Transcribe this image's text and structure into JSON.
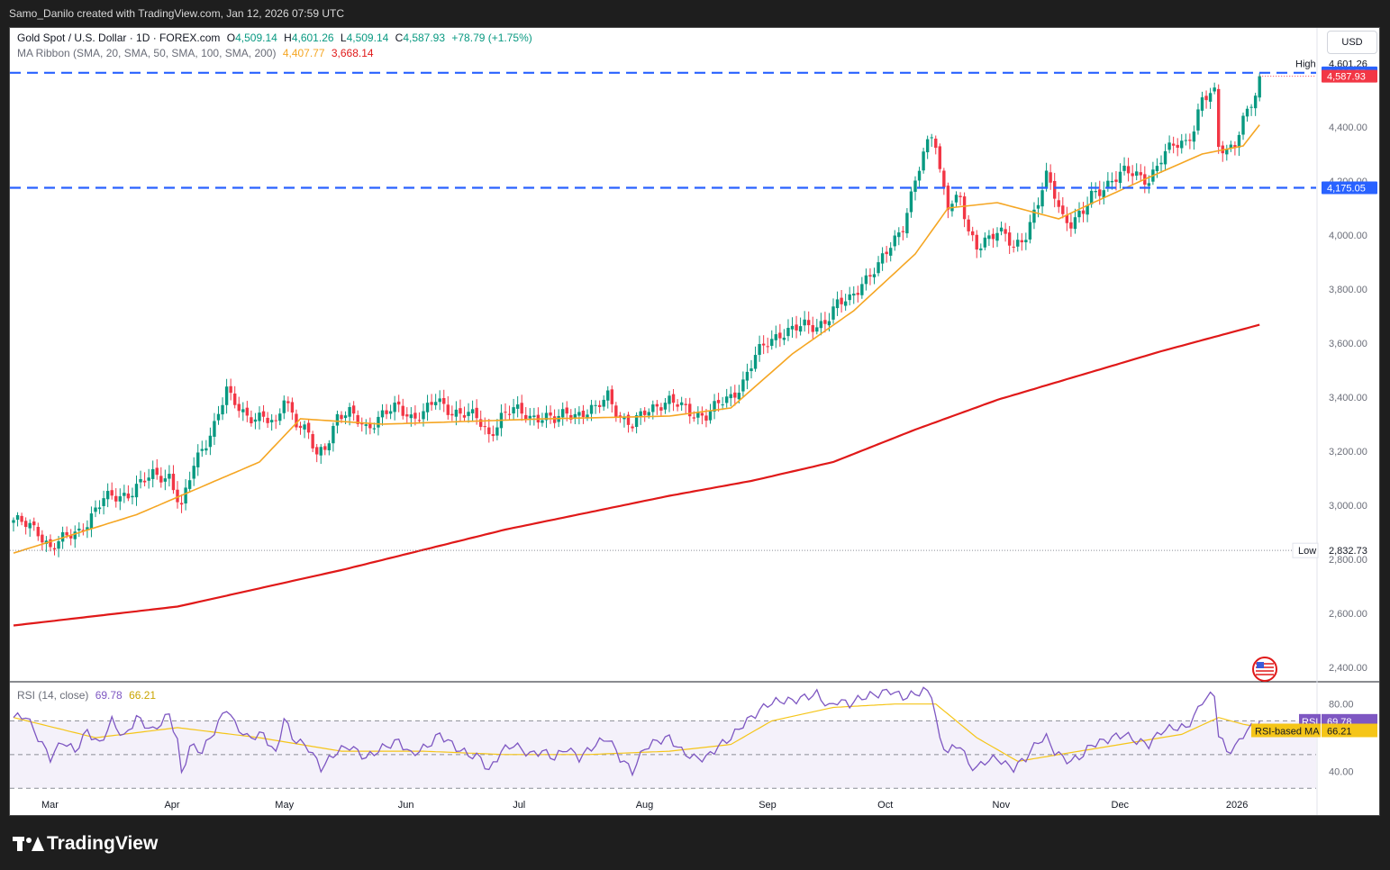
{
  "header": {
    "attribution": "Samo_Danilo created with TradingView.com, Jan 12, 2026 07:59 UTC"
  },
  "legend": {
    "symbol": "Gold Spot / U.S. Dollar · 1D · FOREX.com",
    "o_label": "O",
    "o_value": "4,509.14",
    "h_label": "H",
    "h_value": "4,601.26",
    "l_label": "L",
    "l_value": "4,509.14",
    "c_label": "C",
    "c_value": "4,587.93",
    "change": "+78.79 (+1.75%)",
    "ma_title": "MA Ribbon (SMA, 20, SMA, 50, SMA, 100, SMA, 200)",
    "ma20_value": "4,407.77",
    "ma200_value": "3,668.14",
    "rsi_title": "RSI (14, close)",
    "rsi_value": "69.78",
    "rsi_ma_value": "66.21"
  },
  "currency": "USD",
  "logo_text": "TradingView",
  "colors": {
    "up": "#089981",
    "down": "#f23645",
    "ma20": "#f5a623",
    "ma200": "#e01919",
    "level_line": "#2962ff",
    "rsi": "#7e57c2",
    "rsi_ma": "#f5c518",
    "price_tag": "#f23645"
  },
  "chart_data": [
    {
      "type": "candlestick",
      "title": "Gold Spot / U.S. Dollar · 1D · FOREX.com",
      "ylim": [
        2350,
        4700
      ],
      "y_ticks": [
        2400,
        2600,
        2800,
        3000,
        3200,
        3400,
        3600,
        3800,
        4000,
        4200,
        4400
      ],
      "y_tick_labels": [
        "2,400.00",
        "2,600.00",
        "2,800.00",
        "3,000.00",
        "3,200.00",
        "3,400.00",
        "3,600.00",
        "3,800.00",
        "4,000.00",
        "4,200.00",
        "4,400.00"
      ],
      "x_labels": [
        "Mar",
        "Apr",
        "May",
        "Jun",
        "Jul",
        "Aug",
        "Sep",
        "Oct",
        "Nov",
        "Dec",
        "2026"
      ],
      "x_label_index": [
        9,
        39,
        66,
        96,
        124,
        154,
        184,
        213,
        241,
        270,
        298
      ],
      "keypoints": [
        [
          0,
          2945
        ],
        [
          6,
          2905
        ],
        [
          9,
          2845
        ],
        [
          16,
          2905
        ],
        [
          22,
          3020
        ],
        [
          28,
          3045
        ],
        [
          34,
          3110
        ],
        [
          38,
          3110
        ],
        [
          41,
          2985
        ],
        [
          44,
          3150
        ],
        [
          49,
          3300
        ],
        [
          52,
          3420
        ],
        [
          53,
          3390
        ],
        [
          57,
          3335
        ],
        [
          61,
          3320
        ],
        [
          64,
          3290
        ],
        [
          66,
          3410
        ],
        [
          69,
          3310
        ],
        [
          72,
          3255
        ],
        [
          74,
          3180
        ],
        [
          76,
          3220
        ],
        [
          79,
          3330
        ],
        [
          82,
          3335
        ],
        [
          86,
          3290
        ],
        [
          90,
          3335
        ],
        [
          94,
          3360
        ],
        [
          97,
          3330
        ],
        [
          100,
          3340
        ],
        [
          103,
          3385
        ],
        [
          107,
          3350
        ],
        [
          110,
          3340
        ],
        [
          113,
          3320
        ],
        [
          116,
          3260
        ],
        [
          119,
          3330
        ],
        [
          122,
          3350
        ],
        [
          126,
          3330
        ],
        [
          129,
          3330
        ],
        [
          132,
          3310
        ],
        [
          135,
          3345
        ],
        [
          138,
          3340
        ],
        [
          142,
          3350
        ],
        [
          145,
          3410
        ],
        [
          148,
          3330
        ],
        [
          151,
          3290
        ],
        [
          154,
          3345
        ],
        [
          157,
          3375
        ],
        [
          160,
          3385
        ],
        [
          163,
          3360
        ],
        [
          166,
          3340
        ],
        [
          169,
          3335
        ],
        [
          172,
          3370
        ],
        [
          175,
          3400
        ],
        [
          178,
          3460
        ],
        [
          181,
          3550
        ],
        [
          184,
          3600
        ],
        [
          187,
          3640
        ],
        [
          190,
          3650
        ],
        [
          193,
          3660
        ],
        [
          196,
          3665
        ],
        [
          199,
          3700
        ],
        [
          201,
          3740
        ],
        [
          204,
          3760
        ],
        [
          207,
          3830
        ],
        [
          211,
          3880
        ],
        [
          214,
          3960
        ],
        [
          217,
          4040
        ],
        [
          220,
          4200
        ],
        [
          222,
          4290
        ],
        [
          224,
          4370
        ],
        [
          225,
          4340
        ],
        [
          226,
          4240
        ],
        [
          228,
          4120
        ],
        [
          231,
          4130
        ],
        [
          233,
          4000
        ],
        [
          235,
          3960
        ],
        [
          237,
          3990
        ],
        [
          240,
          4010
        ],
        [
          242,
          3990
        ],
        [
          244,
          3950
        ],
        [
          247,
          4010
        ],
        [
          250,
          4120
        ],
        [
          252,
          4210
        ],
        [
          254,
          4150
        ],
        [
          256,
          4070
        ],
        [
          258,
          4050
        ],
        [
          261,
          4080
        ],
        [
          263,
          4140
        ],
        [
          266,
          4180
        ],
        [
          268,
          4210
        ],
        [
          271,
          4230
        ],
        [
          274,
          4220
        ],
        [
          277,
          4210
        ],
        [
          280,
          4280
        ],
        [
          283,
          4330
        ],
        [
          286,
          4350
        ],
        [
          288,
          4400
        ],
        [
          290,
          4500
        ],
        [
          293,
          4520
        ],
        [
          294,
          4330
        ],
        [
          296,
          4320
        ],
        [
          298,
          4345
        ],
        [
          300,
          4420
        ],
        [
          302,
          4480
        ],
        [
          303,
          4510
        ],
        [
          304,
          4588
        ]
      ],
      "series": [
        {
          "name": "SMA 20",
          "points": [
            [
              0,
              2823
            ],
            [
              30,
              2965
            ],
            [
              60,
              3160
            ],
            [
              70,
              3320
            ],
            [
              90,
              3300
            ],
            [
              130,
              3320
            ],
            [
              160,
              3330
            ],
            [
              175,
              3360
            ],
            [
              190,
              3560
            ],
            [
              205,
              3720
            ],
            [
              220,
              3930
            ],
            [
              228,
              4100
            ],
            [
              240,
              4120
            ],
            [
              255,
              4060
            ],
            [
              262,
              4110
            ],
            [
              275,
              4200
            ],
            [
              290,
              4300
            ],
            [
              300,
              4330
            ],
            [
              304,
              4408
            ]
          ]
        },
        {
          "name": "SMA 200",
          "points": [
            [
              0,
              2555
            ],
            [
              40,
              2625
            ],
            [
              80,
              2760
            ],
            [
              120,
              2910
            ],
            [
              160,
              3035
            ],
            [
              180,
              3090
            ],
            [
              200,
              3160
            ],
            [
              220,
              3280
            ],
            [
              240,
              3390
            ],
            [
              260,
              3480
            ],
            [
              280,
              3570
            ],
            [
              304,
              3668
            ]
          ]
        }
      ],
      "annotations": {
        "high_label": "High",
        "high_value": "4,601.26",
        "high": 4601.26,
        "low_label": "Low",
        "low_value": "2,832.73",
        "low": 2832.73,
        "resistance_value": "4,600.57",
        "resistance": 4600.57,
        "support_value": "4,175.05",
        "support": 4175.05,
        "last_price_value": "4,587.93",
        "last_price": 4587.93
      }
    },
    {
      "type": "line",
      "title": "RSI (14, close)",
      "ylim": [
        28,
        90
      ],
      "y_ticks": [
        40,
        80
      ],
      "y_tick_labels": [
        "40.00",
        "80.00"
      ],
      "bands": [
        30,
        50,
        70
      ],
      "series": [
        {
          "name": "RSI",
          "points": [
            [
              0,
              72
            ],
            [
              3,
              73
            ],
            [
              6,
              60
            ],
            [
              9,
              48
            ],
            [
              12,
              58
            ],
            [
              15,
              52
            ],
            [
              18,
              64
            ],
            [
              21,
              56
            ],
            [
              24,
              70
            ],
            [
              27,
              60
            ],
            [
              30,
              72
            ],
            [
              34,
              64
            ],
            [
              38,
              74
            ],
            [
              40,
              58
            ],
            [
              41,
              38
            ],
            [
              43,
              55
            ],
            [
              46,
              52
            ],
            [
              49,
              64
            ],
            [
              52,
              78
            ],
            [
              54,
              68
            ],
            [
              57,
              60
            ],
            [
              61,
              62
            ],
            [
              64,
              50
            ],
            [
              66,
              72
            ],
            [
              68,
              60
            ],
            [
              72,
              54
            ],
            [
              75,
              42
            ],
            [
              79,
              52
            ],
            [
              82,
              55
            ],
            [
              86,
              48
            ],
            [
              90,
              54
            ],
            [
              94,
              58
            ],
            [
              97,
              50
            ],
            [
              101,
              55
            ],
            [
              104,
              62
            ],
            [
              108,
              54
            ],
            [
              111,
              50
            ],
            [
              114,
              48
            ],
            [
              116,
              40
            ],
            [
              119,
              52
            ],
            [
              122,
              56
            ],
            [
              126,
              50
            ],
            [
              129,
              52
            ],
            [
              132,
              48
            ],
            [
              135,
              54
            ],
            [
              138,
              48
            ],
            [
              142,
              56
            ],
            [
              145,
              60
            ],
            [
              148,
              48
            ],
            [
              151,
              40
            ],
            [
              154,
              54
            ],
            [
              157,
              58
            ],
            [
              160,
              60
            ],
            [
              163,
              52
            ],
            [
              166,
              48
            ],
            [
              169,
              48
            ],
            [
              172,
              55
            ],
            [
              175,
              60
            ],
            [
              178,
              68
            ],
            [
              181,
              74
            ],
            [
              184,
              80
            ],
            [
              187,
              82
            ],
            [
              190,
              82
            ],
            [
              193,
              84
            ],
            [
              196,
              86
            ],
            [
              199,
              78
            ],
            [
              201,
              82
            ],
            [
              204,
              80
            ],
            [
              207,
              84
            ],
            [
              211,
              86
            ],
            [
              214,
              88
            ],
            [
              217,
              84
            ],
            [
              220,
              86
            ],
            [
              222,
              88
            ],
            [
              224,
              86
            ],
            [
              225,
              72
            ],
            [
              226,
              58
            ],
            [
              228,
              52
            ],
            [
              231,
              56
            ],
            [
              233,
              44
            ],
            [
              235,
              42
            ],
            [
              237,
              46
            ],
            [
              240,
              48
            ],
            [
              242,
              44
            ],
            [
              244,
              42
            ],
            [
              247,
              48
            ],
            [
              250,
              58
            ],
            [
              252,
              60
            ],
            [
              254,
              52
            ],
            [
              256,
              48
            ],
            [
              258,
              46
            ],
            [
              261,
              50
            ],
            [
              263,
              56
            ],
            [
              266,
              58
            ],
            [
              268,
              60
            ],
            [
              271,
              62
            ],
            [
              274,
              58
            ],
            [
              277,
              56
            ],
            [
              280,
              64
            ],
            [
              283,
              66
            ],
            [
              286,
              66
            ],
            [
              288,
              72
            ],
            [
              290,
              82
            ],
            [
              293,
              86
            ],
            [
              294,
              62
            ],
            [
              296,
              52
            ],
            [
              298,
              54
            ],
            [
              300,
              62
            ],
            [
              302,
              66
            ],
            [
              303,
              64
            ],
            [
              304,
              69.78
            ]
          ]
        },
        {
          "name": "RSI-based MA",
          "points": [
            [
              0,
              72
            ],
            [
              20,
              60
            ],
            [
              40,
              66
            ],
            [
              60,
              60
            ],
            [
              80,
              52
            ],
            [
              100,
              52
            ],
            [
              120,
              50
            ],
            [
              140,
              50
            ],
            [
              160,
              52
            ],
            [
              175,
              56
            ],
            [
              185,
              70
            ],
            [
              200,
              78
            ],
            [
              215,
              80
            ],
            [
              225,
              80
            ],
            [
              235,
              60
            ],
            [
              245,
              46
            ],
            [
              255,
              50
            ],
            [
              270,
              56
            ],
            [
              285,
              62
            ],
            [
              294,
              72
            ],
            [
              300,
              68
            ],
            [
              304,
              66.21
            ]
          ]
        }
      ],
      "rsi_label": "RSI",
      "rsi_ma_label": "RSI-based MA"
    }
  ]
}
